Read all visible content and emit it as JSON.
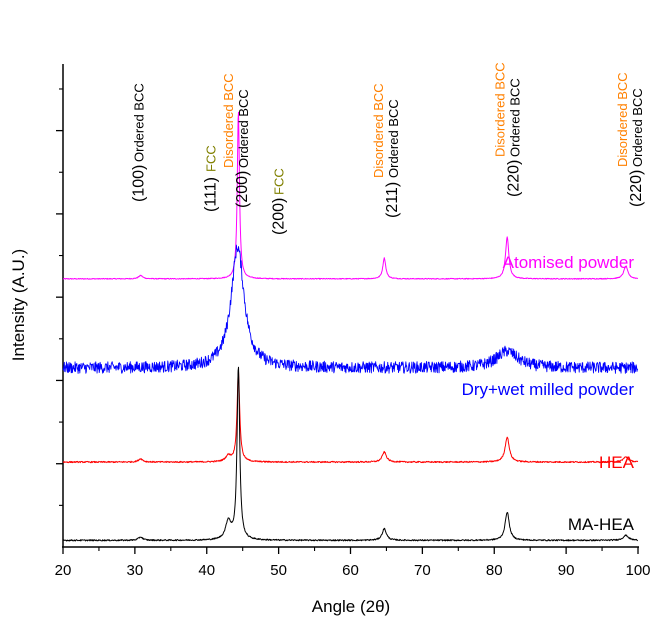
{
  "chart_data": {
    "type": "line",
    "xlabel": "Angle (2θ)",
    "ylabel": "Intensity (A.U.)",
    "xlim": [
      20,
      100
    ],
    "x_ticks": [
      20,
      30,
      40,
      50,
      60,
      70,
      80,
      90,
      100
    ],
    "y_tick_labels": "none",
    "grid": false,
    "series": [
      {
        "name": "Atomised powder",
        "color": "#ff00ff",
        "baseline": 3.22,
        "noise": 0.005,
        "peaks": [
          {
            "x": 30.8,
            "height": 0.04,
            "width": 0.35
          },
          {
            "x": 44.4,
            "height": 2.02,
            "width": 0.18
          },
          {
            "x": 64.7,
            "height": 0.25,
            "width": 0.25
          },
          {
            "x": 81.8,
            "height": 0.5,
            "width": 0.28
          },
          {
            "x": 98.3,
            "height": 0.15,
            "width": 0.35
          }
        ]
      },
      {
        "name": "Dry+wet milled powder",
        "color": "#0000ff",
        "baseline": 2.15,
        "noise": 0.07,
        "peaks": [
          {
            "x": 44.3,
            "height": 1.45,
            "width": 1.1
          },
          {
            "x": 81.8,
            "height": 0.2,
            "width": 1.8
          }
        ]
      },
      {
        "name": "HEA",
        "color": "#ff0000",
        "baseline": 1.02,
        "noise": 0.008,
        "peaks": [
          {
            "x": 30.8,
            "height": 0.04,
            "width": 0.35
          },
          {
            "x": 43.0,
            "height": 0.07,
            "width": 0.45
          },
          {
            "x": 44.4,
            "height": 1.08,
            "width": 0.22
          },
          {
            "x": 64.7,
            "height": 0.12,
            "width": 0.35
          },
          {
            "x": 81.8,
            "height": 0.3,
            "width": 0.35
          },
          {
            "x": 98.3,
            "height": 0.06,
            "width": 0.45
          }
        ]
      },
      {
        "name": "MA-HEA",
        "color": "#000000",
        "baseline": 0.08,
        "noise": 0.008,
        "peaks": [
          {
            "x": 30.8,
            "height": 0.04,
            "width": 0.35
          },
          {
            "x": 43.0,
            "height": 0.22,
            "width": 0.45
          },
          {
            "x": 44.4,
            "height": 2.08,
            "width": 0.22
          },
          {
            "x": 64.7,
            "height": 0.14,
            "width": 0.35
          },
          {
            "x": 81.8,
            "height": 0.34,
            "width": 0.35
          },
          {
            "x": 98.3,
            "height": 0.06,
            "width": 0.45
          }
        ]
      }
    ],
    "annotations": [
      {
        "x": 31.2,
        "hkl": "(100)",
        "phase": "Ordered BCC",
        "color": "#000000"
      },
      {
        "x": 41.2,
        "hkl": "(111)",
        "phase": "FCC",
        "color": "#808000"
      },
      {
        "x": 45.6,
        "hkl": "(200)",
        "phase": "Disordered BCC",
        "phase2": "Ordered BCC",
        "color": "#ff8000"
      },
      {
        "x": 50.7,
        "hkl": "(200)",
        "phase": "FCC",
        "color": "#808000"
      },
      {
        "x": 66.5,
        "hkl": "(211)",
        "phase": "Disordered BCC",
        "phase2": "Ordered BCC",
        "color": "#ff8000"
      },
      {
        "x": 83.4,
        "hkl": "(220)",
        "phase": "Disordered BCC",
        "phase2": "Ordered BCC",
        "color": "#ff8000"
      },
      {
        "x": 100.4,
        "hkl": "(220)",
        "phase": "Disordered BCC",
        "phase2": "Ordered BCC",
        "color": "#ff8000"
      }
    ]
  }
}
